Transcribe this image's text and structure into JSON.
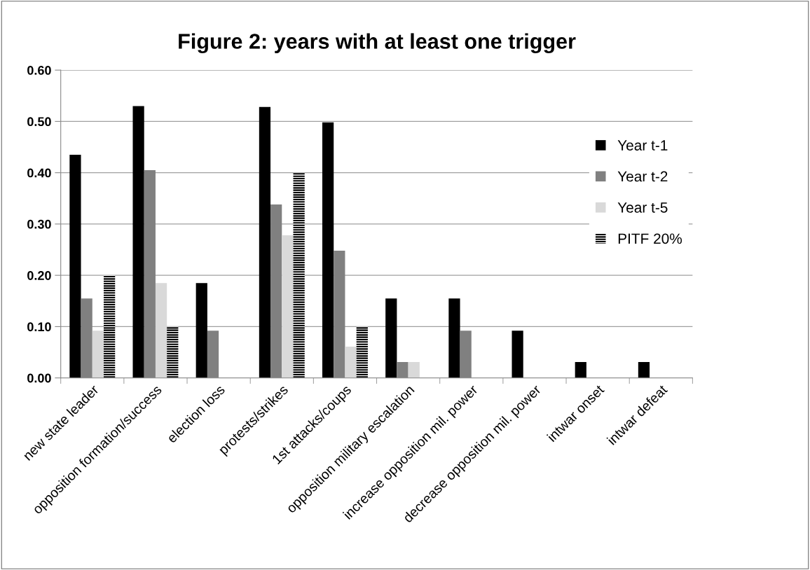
{
  "chart_data": {
    "type": "bar",
    "title": "Figure 2: years with at least one trigger",
    "categories": [
      "new state leader",
      "opposition formation/success",
      "election loss",
      "protests/strikes",
      "1st attacks/coups",
      "opposition military escalation",
      "increase opposition mil. power",
      "decrease opposition mil. power",
      "intwar onset",
      "intwar defeat"
    ],
    "series": [
      {
        "name": "Year t-1",
        "color": "#000000",
        "values": [
          0.435,
          0.53,
          0.185,
          0.528,
          0.498,
          0.155,
          0.155,
          0.092,
          0.031,
          0.031
        ]
      },
      {
        "name": "Year t-2",
        "color": "#808080",
        "values": [
          0.155,
          0.405,
          0.092,
          0.338,
          0.248,
          0.031,
          0.092,
          0,
          0,
          0
        ]
      },
      {
        "name": "Year t-5",
        "color": "#d9d9d9",
        "values": [
          0.092,
          0.185,
          0,
          0.278,
          0.061,
          0.031,
          0,
          0,
          0,
          0
        ]
      },
      {
        "name": "PITF 20%",
        "color": "#000000",
        "values": [
          0.2,
          0.1,
          0,
          0.4,
          0.1,
          0,
          0,
          0,
          0,
          0
        ]
      }
    ],
    "ylim": [
      0,
      0.6
    ],
    "yticks": [
      {
        "value": 0,
        "label": "0.00"
      },
      {
        "value": 0.1,
        "label": "0.10"
      },
      {
        "value": 0.2,
        "label": "0.20"
      },
      {
        "value": 0.3,
        "label": "0.30"
      },
      {
        "value": 0.4,
        "label": "0.40"
      },
      {
        "value": 0.5,
        "label": "0.50"
      },
      {
        "value": 0.6,
        "label": "0.60"
      }
    ],
    "grid": "y",
    "legend": "right"
  }
}
